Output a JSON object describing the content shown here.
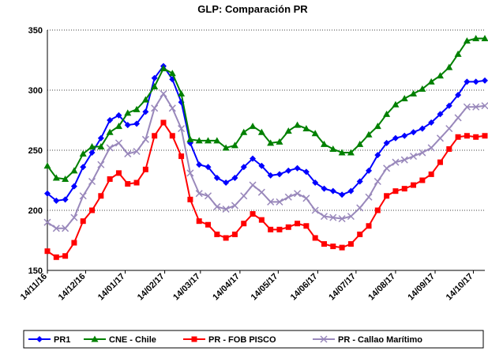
{
  "chart_data": {
    "type": "line",
    "title": "GLP: Comparación PR",
    "x": [
      "2016-11-14",
      "2016-11-21",
      "2016-11-28",
      "2016-12-05",
      "2016-12-12",
      "2016-12-19",
      "2016-12-26",
      "2017-01-02",
      "2017-01-09",
      "2017-01-16",
      "2017-01-23",
      "2017-01-30",
      "2017-02-06",
      "2017-02-13",
      "2017-02-20",
      "2017-02-27",
      "2017-03-06",
      "2017-03-13",
      "2017-03-20",
      "2017-03-27",
      "2017-04-03",
      "2017-04-10",
      "2017-04-17",
      "2017-04-24",
      "2017-05-01",
      "2017-05-08",
      "2017-05-15",
      "2017-05-22",
      "2017-05-29",
      "2017-06-05",
      "2017-06-12",
      "2017-06-19",
      "2017-06-26",
      "2017-07-03",
      "2017-07-10",
      "2017-07-17",
      "2017-07-24",
      "2017-07-31",
      "2017-08-07",
      "2017-08-14",
      "2017-08-21",
      "2017-08-28",
      "2017-09-04",
      "2017-09-11",
      "2017-09-18",
      "2017-09-25",
      "2017-10-02",
      "2017-10-09",
      "2017-10-16",
      "2017-10-23"
    ],
    "series": [
      {
        "name": "PR1",
        "color": "#0000ff",
        "marker": "diamond",
        "values": [
          214,
          208,
          209,
          220,
          236,
          248,
          260,
          275,
          279,
          271,
          272,
          282,
          310,
          320,
          309,
          290,
          256,
          238,
          236,
          227,
          223,
          227,
          236,
          243,
          237,
          229,
          230,
          233,
          235,
          232,
          223,
          218,
          216,
          213,
          216,
          224,
          233,
          246,
          256,
          260,
          262,
          265,
          268,
          273,
          280,
          287,
          296,
          307,
          307,
          308
        ]
      },
      {
        "name": "CNE - Chile",
        "color": "#008000",
        "marker": "triangle",
        "values": [
          237,
          227,
          226,
          233,
          247,
          253,
          253,
          265,
          270,
          281,
          284,
          292,
          303,
          318,
          314,
          297,
          259,
          258,
          258,
          258,
          252,
          254,
          265,
          270,
          265,
          256,
          257,
          266,
          271,
          268,
          264,
          255,
          251,
          248,
          248,
          255,
          263,
          270,
          280,
          288,
          293,
          297,
          301,
          307,
          312,
          319,
          330,
          341,
          343,
          343
        ]
      },
      {
        "name": "PR - FOB PISCO",
        "color": "#ff0000",
        "marker": "square",
        "values": [
          166,
          161,
          162,
          173,
          191,
          200,
          212,
          226,
          231,
          222,
          223,
          234,
          262,
          273,
          262,
          245,
          209,
          191,
          188,
          180,
          177,
          180,
          189,
          197,
          192,
          184,
          184,
          186,
          189,
          187,
          177,
          172,
          170,
          169,
          172,
          180,
          187,
          200,
          212,
          216,
          218,
          221,
          225,
          230,
          240,
          251,
          261,
          262,
          261,
          262
        ]
      },
      {
        "name": "PR - Callao Marítimo",
        "color": "#9988bb",
        "marker": "x",
        "values": [
          190,
          185,
          185,
          194,
          212,
          224,
          238,
          252,
          256,
          247,
          249,
          259,
          285,
          297,
          285,
          268,
          231,
          214,
          212,
          203,
          201,
          204,
          212,
          221,
          215,
          207,
          207,
          211,
          214,
          210,
          200,
          195,
          194,
          193,
          195,
          202,
          211,
          224,
          235,
          240,
          242,
          245,
          248,
          252,
          260,
          268,
          277,
          286,
          286,
          287
        ]
      }
    ],
    "xlim": [
      "2016-11-14",
      "2017-10-23"
    ],
    "xticks": [
      {
        "value": "2016-11-14",
        "label": "14/11/16"
      },
      {
        "value": "2016-12-14",
        "label": "14/12/16"
      },
      {
        "value": "2017-01-14",
        "label": "14/01/17"
      },
      {
        "value": "2017-02-14",
        "label": "14/02/17"
      },
      {
        "value": "2017-03-14",
        "label": "14/03/17"
      },
      {
        "value": "2017-04-14",
        "label": "14/04/17"
      },
      {
        "value": "2017-05-14",
        "label": "14/05/17"
      },
      {
        "value": "2017-06-14",
        "label": "14/06/17"
      },
      {
        "value": "2017-07-14",
        "label": "14/07/17"
      },
      {
        "value": "2017-08-14",
        "label": "14/08/17"
      },
      {
        "value": "2017-09-14",
        "label": "14/09/17"
      },
      {
        "value": "2017-10-14",
        "label": "14/10/17"
      }
    ],
    "ylim": [
      150,
      350
    ],
    "yticks": [
      150,
      200,
      250,
      300,
      350
    ],
    "grid": true,
    "legend": "bottom"
  }
}
